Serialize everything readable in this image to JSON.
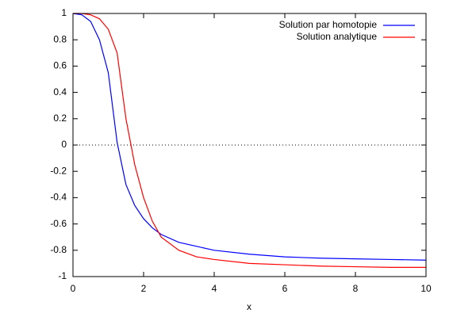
{
  "chart_data": {
    "type": "line",
    "x_label": "x",
    "x": [
      0,
      0.25,
      0.5,
      0.75,
      1,
      1.25,
      1.5,
      1.75,
      2,
      2.25,
      2.5,
      3,
      3.5,
      4,
      5,
      6,
      7,
      8,
      9,
      10
    ],
    "series": [
      {
        "name": "Solution par homotopie",
        "color": "#0000ff",
        "values": [
          1,
          0.99,
          0.94,
          0.8,
          0.55,
          0.02,
          -0.3,
          -0.46,
          -0.56,
          -0.63,
          -0.68,
          -0.74,
          -0.77,
          -0.8,
          -0.83,
          -0.85,
          -0.86,
          -0.865,
          -0.87,
          -0.875
        ]
      },
      {
        "name": "Solution analytique",
        "color": "#ff0000",
        "values": [
          1,
          1,
          0.99,
          0.96,
          0.88,
          0.7,
          0.2,
          -0.15,
          -0.4,
          -0.58,
          -0.7,
          -0.8,
          -0.85,
          -0.87,
          -0.9,
          -0.91,
          -0.92,
          -0.925,
          -0.93,
          -0.93
        ]
      }
    ],
    "xlim": [
      0,
      10
    ],
    "xticks": [
      0,
      2,
      4,
      6,
      8,
      10
    ],
    "ylim": [
      -1,
      1
    ],
    "yticks": [
      1,
      0.8,
      0.6,
      0.4,
      0.2,
      0,
      -0.2,
      -0.4,
      -0.6,
      -0.8,
      -1
    ],
    "zero_axis": true,
    "legend": "top-right"
  }
}
